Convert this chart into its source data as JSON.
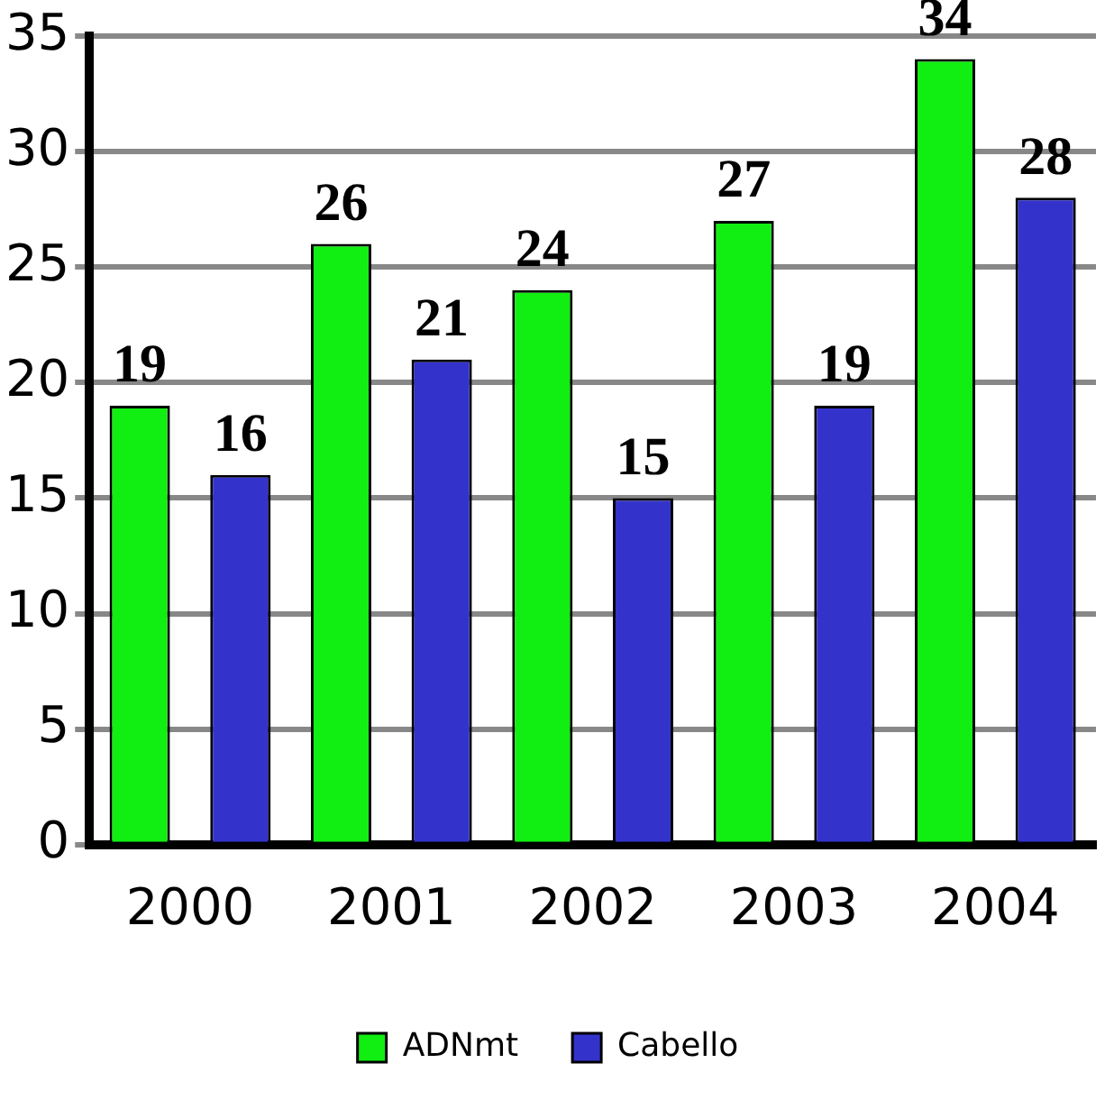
{
  "chart_data": {
    "type": "bar",
    "categories": [
      "2000",
      "2001",
      "2002",
      "2003",
      "2004"
    ],
    "series": [
      {
        "name": "ADNmt",
        "color": "#11ee11",
        "values": [
          19,
          26,
          24,
          27,
          34
        ]
      },
      {
        "name": "Cabello",
        "color": "#3333cc",
        "values": [
          16,
          21,
          15,
          19,
          28
        ]
      }
    ],
    "ylim": [
      0,
      35
    ],
    "yticks": [
      0,
      5,
      10,
      15,
      20,
      25,
      30,
      35
    ],
    "grid": "y",
    "legend": "bottom",
    "data_labels": true
  }
}
